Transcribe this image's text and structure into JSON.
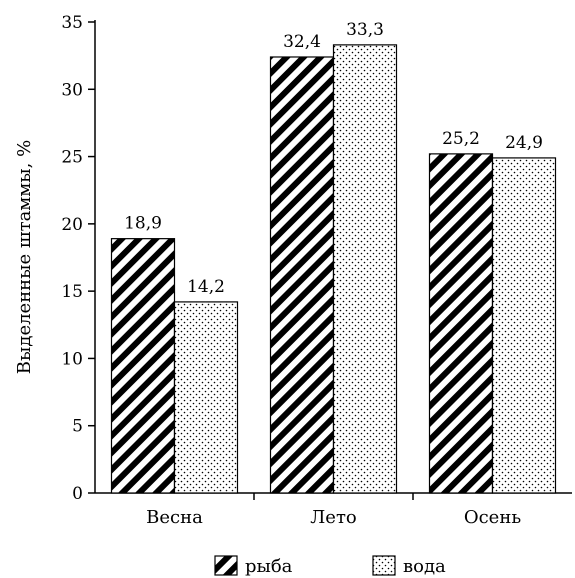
{
  "chart_data": {
    "type": "bar",
    "categories": [
      "Весна",
      "Лето",
      "Осень"
    ],
    "series": [
      {
        "name": "рыба",
        "values": [
          18.9,
          32.4,
          25.2
        ],
        "labels": [
          "18,9",
          "32,4",
          "25,2"
        ],
        "pattern": "diagonal-hatch"
      },
      {
        "name": "вода",
        "values": [
          14.2,
          33.3,
          24.9
        ],
        "labels": [
          "14,2",
          "33,3",
          "24,9"
        ],
        "pattern": "dots"
      }
    ],
    "xlabel": "",
    "ylabel": "Выделенные штаммы, %",
    "ylim": [
      0,
      35
    ],
    "yticks": [
      0,
      5,
      10,
      15,
      20,
      25,
      30,
      35
    ],
    "grid": false,
    "legend_position": "bottom"
  }
}
